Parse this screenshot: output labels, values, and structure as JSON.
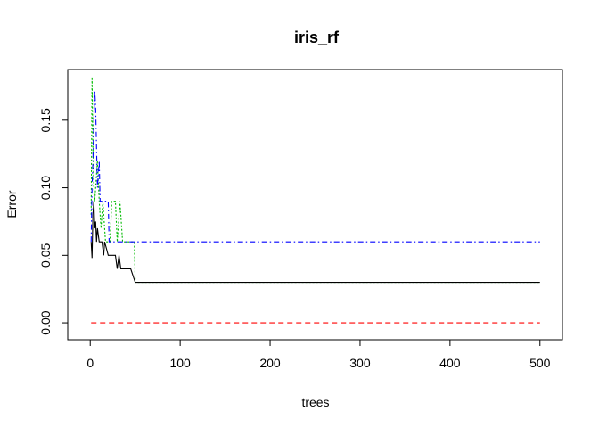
{
  "chart_data": {
    "type": "line",
    "title": "iris_rf",
    "xlabel": "trees",
    "ylabel": "Error",
    "xlim": [
      -25,
      525
    ],
    "ylim": [
      -0.0125,
      0.1875
    ],
    "xticks": [
      0,
      100,
      200,
      300,
      400,
      500
    ],
    "yticks": [
      0.0,
      0.05,
      0.1,
      0.15
    ],
    "ytick_labels": [
      "0.00",
      "0.05",
      "0.10",
      "0.15"
    ],
    "grid": false,
    "legend": "none",
    "series": [
      {
        "color": "#ff0000",
        "dash": "dashed",
        "points": [
          [
            1,
            0
          ],
          [
            500,
            0
          ]
        ]
      },
      {
        "color": "#00bb00",
        "dash": "dotted",
        "points": [
          [
            1,
            0.08
          ],
          [
            2,
            0.182
          ],
          [
            3,
            0.13
          ],
          [
            4,
            0.1
          ],
          [
            5,
            0.09
          ],
          [
            8,
            0.12
          ],
          [
            10,
            0.09
          ],
          [
            12,
            0.07
          ],
          [
            14,
            0.09
          ],
          [
            17,
            0.06
          ],
          [
            22,
            0.06
          ],
          [
            24,
            0.09
          ],
          [
            28,
            0.09
          ],
          [
            30,
            0.06
          ],
          [
            33,
            0.09
          ],
          [
            36,
            0.06
          ],
          [
            49,
            0.06
          ],
          [
            50,
            0.03
          ],
          [
            500,
            0.03
          ]
        ]
      },
      {
        "color": "#0000ff",
        "dash": "dashdot",
        "points": [
          [
            1,
            0.06
          ],
          [
            2,
            0.1
          ],
          [
            3,
            0.12
          ],
          [
            4,
            0.15
          ],
          [
            5,
            0.172
          ],
          [
            6,
            0.16
          ],
          [
            7,
            0.13
          ],
          [
            8,
            0.1
          ],
          [
            10,
            0.12
          ],
          [
            11,
            0.09
          ],
          [
            20,
            0.09
          ],
          [
            21,
            0.06
          ],
          [
            500,
            0.06
          ]
        ]
      },
      {
        "color": "#000000",
        "dash": "solid",
        "points": [
          [
            1,
            0.06
          ],
          [
            2,
            0.048
          ],
          [
            3,
            0.08
          ],
          [
            4,
            0.09
          ],
          [
            5,
            0.07
          ],
          [
            6,
            0.075
          ],
          [
            7,
            0.06
          ],
          [
            8,
            0.07
          ],
          [
            10,
            0.06
          ],
          [
            13,
            0.06
          ],
          [
            15,
            0.05
          ],
          [
            16,
            0.06
          ],
          [
            20,
            0.05
          ],
          [
            28,
            0.05
          ],
          [
            30,
            0.04
          ],
          [
            32,
            0.05
          ],
          [
            34,
            0.04
          ],
          [
            40,
            0.04
          ],
          [
            45,
            0.04
          ],
          [
            50,
            0.03
          ],
          [
            500,
            0.03
          ]
        ]
      }
    ]
  }
}
